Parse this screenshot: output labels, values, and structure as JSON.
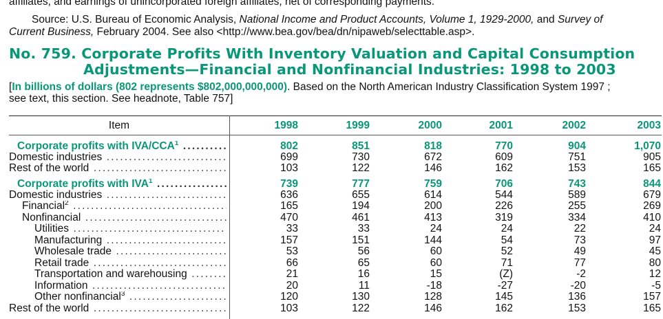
{
  "intro": {
    "line1": "affiliates, and earnings of unincorporated foreign affiliates, net of corresponding payments.",
    "source_prefix": "Source: U.S. Bureau of Economic Analysis, ",
    "source_pub1": "National Income and Product Accounts, Volume 1, 1929-2000,",
    "source_and": " and ",
    "source_pub2a": "Survey of",
    "source_pub2b": "Current Business,",
    "source_rest": " February 2004. See also <http://www.bea.gov/bea/dn/nipaweb/selecttable.asp>."
  },
  "title": {
    "line1": "No. 759. Corporate Profits With Inventory Valuation and Capital Consumption",
    "line2": "Adjustments—Financial and Nonfinancial Industries: 1998 to 2003"
  },
  "headnote": {
    "open": "[",
    "bold": "In billions of dollars (802 represents $802,000,000,000)",
    "rest1": ". Based on the North American Industry Classification System 1997 ;",
    "rest2": "see text, this section. See headnote, Table 757]"
  },
  "table": {
    "item_header": "Item",
    "years": [
      "1998",
      "1999",
      "2000",
      "2001",
      "2002",
      "2003"
    ],
    "rows": [
      {
        "label": "Corporate profits with IVA/CCA",
        "sup": "1",
        "head": true,
        "indent": 1,
        "values": [
          "802",
          "851",
          "818",
          "770",
          "904",
          "1,070"
        ]
      },
      {
        "label": "Domestic industries",
        "sup": "",
        "head": false,
        "indent": 0,
        "values": [
          "699",
          "730",
          "672",
          "609",
          "751",
          "905"
        ]
      },
      {
        "label": "Rest of the world",
        "sup": "",
        "head": false,
        "indent": 0,
        "values": [
          "103",
          "122",
          "146",
          "162",
          "153",
          "165"
        ]
      },
      {
        "label": "Corporate profits with IVA",
        "sup": "1",
        "head": true,
        "indent": 1,
        "values": [
          "739",
          "777",
          "759",
          "706",
          "743",
          "844"
        ]
      },
      {
        "label": "Domestic industries",
        "sup": "",
        "head": false,
        "indent": 0,
        "values": [
          "636",
          "655",
          "614",
          "544",
          "589",
          "679"
        ]
      },
      {
        "label": "Financial",
        "sup": "2",
        "head": false,
        "indent": 2,
        "values": [
          "165",
          "194",
          "200",
          "226",
          "255",
          "269"
        ]
      },
      {
        "label": "Nonfinancial",
        "sup": "",
        "head": false,
        "indent": 2,
        "values": [
          "470",
          "461",
          "413",
          "319",
          "334",
          "410"
        ]
      },
      {
        "label": "Utilities",
        "sup": "",
        "head": false,
        "indent": 3,
        "values": [
          "33",
          "33",
          "24",
          "24",
          "22",
          "24"
        ]
      },
      {
        "label": "Manufacturing",
        "sup": "",
        "head": false,
        "indent": 3,
        "values": [
          "157",
          "151",
          "144",
          "54",
          "73",
          "97"
        ]
      },
      {
        "label": "Wholesale trade",
        "sup": "",
        "head": false,
        "indent": 3,
        "values": [
          "53",
          "56",
          "60",
          "52",
          "49",
          "45"
        ]
      },
      {
        "label": "Retail trade",
        "sup": "",
        "head": false,
        "indent": 3,
        "values": [
          "66",
          "65",
          "60",
          "71",
          "77",
          "80"
        ]
      },
      {
        "label": "Transportation and warehousing",
        "sup": "",
        "head": false,
        "indent": 3,
        "values": [
          "21",
          "16",
          "15",
          "(Z)",
          "-2",
          "12"
        ]
      },
      {
        "label": "Information",
        "sup": "",
        "head": false,
        "indent": 3,
        "values": [
          "20",
          "11",
          "-18",
          "-27",
          "-20",
          "-5"
        ]
      },
      {
        "label": "Other nonfinancial",
        "sup": "3",
        "head": false,
        "indent": 3,
        "values": [
          "120",
          "130",
          "128",
          "145",
          "136",
          "157"
        ]
      },
      {
        "label": "Rest of the world",
        "sup": "",
        "head": false,
        "indent": 0,
        "values": [
          "103",
          "122",
          "146",
          "162",
          "153",
          "165"
        ]
      }
    ]
  }
}
